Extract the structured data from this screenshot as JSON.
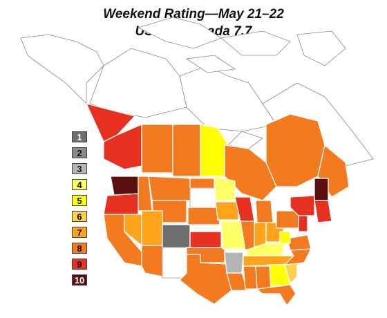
{
  "title": "Weekend Rating—May 21–22",
  "subtitle": "US 7.1, Canada 7.7",
  "legend": [
    {
      "label": "1",
      "color": "#6e6e6e"
    },
    {
      "label": "2",
      "color": "#8a8a8a"
    },
    {
      "label": "3",
      "color": "#b5b5b5"
    },
    {
      "label": "4",
      "color": "#ffff66"
    },
    {
      "label": "5",
      "color": "#ffff00"
    },
    {
      "label": "6",
      "color": "#ffd24d"
    },
    {
      "label": "7",
      "color": "#ffa31a"
    },
    {
      "label": "8",
      "color": "#f47a20"
    },
    {
      "label": "9",
      "color": "#e83020"
    },
    {
      "label": "10",
      "color": "#5a1010"
    }
  ],
  "regions": [
    {
      "name": "Yukon",
      "rating": 9
    },
    {
      "name": "British Columbia",
      "rating": 9
    },
    {
      "name": "Alberta",
      "rating": 8
    },
    {
      "name": "Saskatchewan",
      "rating": 8
    },
    {
      "name": "Manitoba",
      "rating": 5
    },
    {
      "name": "Ontario",
      "rating": 8
    },
    {
      "name": "Quebec",
      "rating": 8
    },
    {
      "name": "Atlantic Canada",
      "rating": 8
    },
    {
      "name": "Washington",
      "rating": 10
    },
    {
      "name": "Oregon",
      "rating": 9
    },
    {
      "name": "California",
      "rating": 8
    },
    {
      "name": "Nevada",
      "rating": 7
    },
    {
      "name": "Idaho",
      "rating": 8
    },
    {
      "name": "Montana",
      "rating": 8
    },
    {
      "name": "Wyoming",
      "rating": 8
    },
    {
      "name": "Utah",
      "rating": 7
    },
    {
      "name": "Arizona",
      "rating": 8
    },
    {
      "name": "Colorado",
      "rating": 1
    },
    {
      "name": "New Mexico",
      "rating": 0
    },
    {
      "name": "North Dakota",
      "rating": 8
    },
    {
      "name": "South Dakota",
      "rating": 0
    },
    {
      "name": "Nebraska",
      "rating": 8
    },
    {
      "name": "Kansas",
      "rating": 9
    },
    {
      "name": "Oklahoma",
      "rating": 8
    },
    {
      "name": "Texas",
      "rating": 8
    },
    {
      "name": "Minnesota",
      "rating": 4
    },
    {
      "name": "Iowa",
      "rating": 7
    },
    {
      "name": "Missouri",
      "rating": 4
    },
    {
      "name": "Arkansas",
      "rating": 3
    },
    {
      "name": "Louisiana",
      "rating": 8
    },
    {
      "name": "Wisconsin",
      "rating": 9
    },
    {
      "name": "Illinois",
      "rating": 8
    },
    {
      "name": "Michigan",
      "rating": 8
    },
    {
      "name": "Indiana",
      "rating": 7
    },
    {
      "name": "Ohio",
      "rating": 7
    },
    {
      "name": "Kentucky",
      "rating": 4
    },
    {
      "name": "Tennessee",
      "rating": 7
    },
    {
      "name": "Mississippi",
      "rating": 8
    },
    {
      "name": "Alabama",
      "rating": 8
    },
    {
      "name": "Georgia",
      "rating": 5
    },
    {
      "name": "Florida",
      "rating": 8
    },
    {
      "name": "South Carolina",
      "rating": 6
    },
    {
      "name": "North Carolina",
      "rating": 8
    },
    {
      "name": "Virginia",
      "rating": 8
    },
    {
      "name": "West Virginia",
      "rating": 5
    },
    {
      "name": "Pennsylvania",
      "rating": 8
    },
    {
      "name": "New York",
      "rating": 9
    },
    {
      "name": "New Jersey",
      "rating": 9
    },
    {
      "name": "New England",
      "rating": 9
    },
    {
      "name": "Maine",
      "rating": 10
    }
  ]
}
